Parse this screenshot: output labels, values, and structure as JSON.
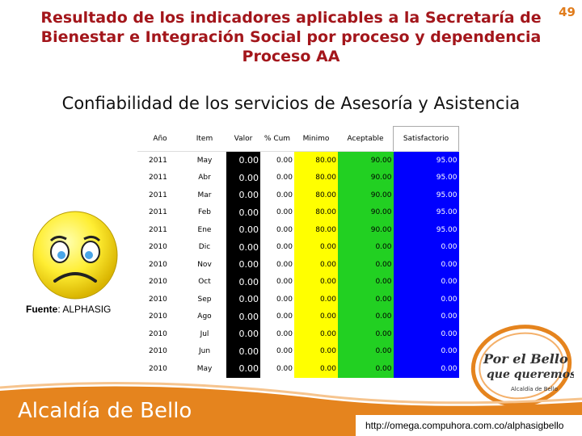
{
  "page_number": "49",
  "title": {
    "line1": "Resultado de los indicadores aplicables a la Secretaría de",
    "line2": "Bienestar e Integración Social por proceso y dependencia",
    "line3": "Proceso AA"
  },
  "subtitle": "Confiabilidad de los servicios de Asesoría y Asistencia",
  "source": {
    "label": "Fuente",
    "value": ": ALPHASIG"
  },
  "table": {
    "headers": [
      "Año",
      "Item",
      "Valor",
      "% Cum",
      "Minimo",
      "Aceptable",
      "Satisfactorio"
    ],
    "rows": [
      [
        "2011",
        "May",
        "0.00",
        "0.00",
        "80.00",
        "90.00",
        "95.00"
      ],
      [
        "2011",
        "Abr",
        "0.00",
        "0.00",
        "80.00",
        "90.00",
        "95.00"
      ],
      [
        "2011",
        "Mar",
        "0.00",
        "0.00",
        "80.00",
        "90.00",
        "95.00"
      ],
      [
        "2011",
        "Feb",
        "0.00",
        "0.00",
        "80.00",
        "90.00",
        "95.00"
      ],
      [
        "2011",
        "Ene",
        "0.00",
        "0.00",
        "80.00",
        "90.00",
        "95.00"
      ],
      [
        "2010",
        "Dic",
        "0.00",
        "0.00",
        "0.00",
        "0.00",
        "0.00"
      ],
      [
        "2010",
        "Nov",
        "0.00",
        "0.00",
        "0.00",
        "0.00",
        "0.00"
      ],
      [
        "2010",
        "Oct",
        "0.00",
        "0.00",
        "0.00",
        "0.00",
        "0.00"
      ],
      [
        "2010",
        "Sep",
        "0.00",
        "0.00",
        "0.00",
        "0.00",
        "0.00"
      ],
      [
        "2010",
        "Ago",
        "0.00",
        "0.00",
        "0.00",
        "0.00",
        "0.00"
      ],
      [
        "2010",
        "Jul",
        "0.00",
        "0.00",
        "0.00",
        "0.00",
        "0.00"
      ],
      [
        "2010",
        "Jun",
        "0.00",
        "0.00",
        "0.00",
        "0.00",
        "0.00"
      ],
      [
        "2010",
        "May",
        "0.00",
        "0.00",
        "0.00",
        "0.00",
        "0.00"
      ]
    ]
  },
  "logo": {
    "line1": "Por el Bello",
    "line2": "que queremos",
    "line3": "Alcaldía de Bello"
  },
  "footer": {
    "brand": "Alcaldía de Bello",
    "url": "http://omega.compuhora.com.co/alphasigbello"
  },
  "colors": {
    "title": "#a3161b",
    "footer": "#e5841e",
    "minimo": "#ffff00",
    "aceptable": "#22d022",
    "satisfactorio": "#0000ff",
    "valor": "#000000"
  },
  "icons": {
    "face": "sad-face-icon"
  }
}
